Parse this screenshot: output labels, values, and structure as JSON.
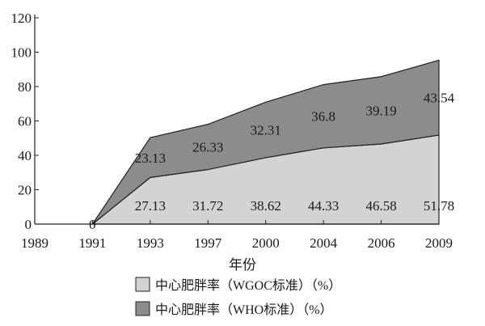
{
  "chart_data": {
    "type": "area",
    "stacked": true,
    "categories": [
      "1989",
      "1991",
      "1993",
      "1997",
      "2000",
      "2004",
      "2006",
      "2009"
    ],
    "xlabel": "年份",
    "ylabel": "",
    "ylim": [
      0,
      120
    ],
    "yticks": [
      "0",
      "20",
      "40",
      "60",
      "80",
      "100",
      "120"
    ],
    "grid": false,
    "legend_position": "bottom",
    "series": [
      {
        "name": "中心肥胖率（WGOC标准）（%）",
        "color": "#d3d3d3",
        "values": [
          null,
          0,
          27.13,
          31.72,
          38.62,
          44.33,
          46.58,
          51.78
        ],
        "labels": [
          "",
          "0",
          "27.13",
          "31.72",
          "38.62",
          "44.33",
          "46.58",
          "51.78"
        ]
      },
      {
        "name": "中心肥胖率（WHO标准）（%）",
        "color": "#8c8c8c",
        "values": [
          null,
          0,
          23.13,
          26.33,
          32.31,
          36.8,
          39.19,
          43.54
        ],
        "labels": [
          "",
          "",
          "23.13",
          "26.33",
          "32.31",
          "36.8",
          "39.19",
          "43.54"
        ]
      }
    ]
  }
}
